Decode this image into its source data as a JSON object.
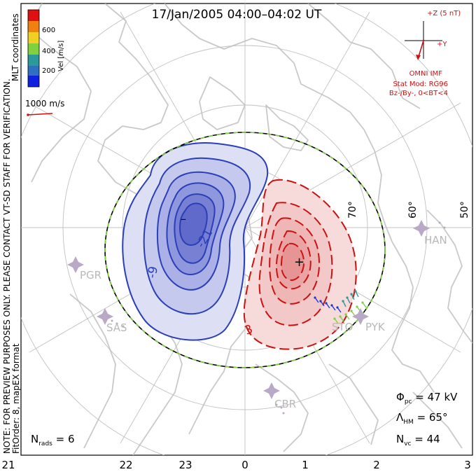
{
  "title": "17/Jan/2005 04:00–04:02 UT",
  "coord_system": "MLT coordinates",
  "colorbar": {
    "label": "Vel [m/s]",
    "ticks": [
      "600",
      "400",
      "200"
    ],
    "colors": [
      "#e01010",
      "#f08010",
      "#f0d020",
      "#80d040",
      "#2a9a9a",
      "#3070c0",
      "#1020e0"
    ]
  },
  "vector_scale": "1000 m/s",
  "imf": {
    "z_label": "+Z (5 nT)",
    "y_label": "+Y",
    "source": "OMNI IMF",
    "model": "Stat Mod: RG96",
    "condition": "Bz-/By-, 0<BT<4",
    "color": "#cc1111"
  },
  "watermark": "NOTE: FOR PREVIEW PURPOSES ONLY. PLEASE CONTACT VT-SD STAFF FOR VERIFICATION.",
  "fit_info": "FitOrder: 8, mapEX format",
  "contour_labels": {
    "minus_21": "-21",
    "minus_9": "-9",
    "plus_3": "3",
    "minus_marker": "–",
    "plus_marker": "+"
  },
  "latitude_labels": [
    "70°",
    "60°",
    "50°"
  ],
  "stations": [
    "PGR",
    "SAS",
    "STO",
    "PYK",
    "HAN",
    "CBR"
  ],
  "stats": {
    "phi_pc": "47 kV",
    "lambda_hm": "65°",
    "n_vc": "44",
    "n_rads": "6"
  },
  "mlt_axis": [
    "21",
    "22",
    "23",
    "0",
    "1",
    "2",
    "3"
  ]
}
